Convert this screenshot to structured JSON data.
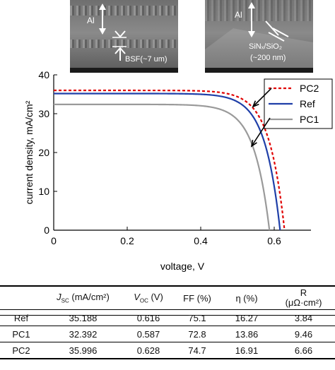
{
  "insets": {
    "left": {
      "al_label": "Al",
      "bsf_label": "BSF(~7 um)"
    },
    "right": {
      "al_label": "Al",
      "layer_line1": "SiNₓ/SiO₂",
      "layer_line2": "(~200 nm)"
    }
  },
  "chart_data": {
    "type": "line",
    "xlabel": "voltage, V",
    "ylabel": "current density, mA/cm²",
    "xlim": [
      0,
      0.7
    ],
    "ylim": [
      0,
      40
    ],
    "xticks": [
      0,
      0.2,
      0.4,
      0.6
    ],
    "yticks": [
      0,
      10,
      20,
      30,
      40
    ],
    "legend_position": "top-right",
    "series": [
      {
        "name": "PC2",
        "color": "#e00000",
        "dash": true,
        "jsc": 35.996,
        "voc": 0.628,
        "n": 1.6
      },
      {
        "name": "Ref",
        "color": "#1f3fa8",
        "dash": false,
        "jsc": 35.188,
        "voc": 0.616,
        "n": 1.6
      },
      {
        "name": "PC1",
        "color": "#9a9a9a",
        "dash": false,
        "jsc": 32.392,
        "voc": 0.587,
        "n": 1.6
      }
    ]
  },
  "table": {
    "headers": [
      {
        "main": "J",
        "sub": "SC",
        "rest": " (mA/cm²)"
      },
      {
        "main": "V",
        "sub": "OC",
        "rest": " (V)"
      },
      {
        "main": "FF (%)",
        "sub": "",
        "rest": ""
      },
      {
        "main": "η (%)",
        "sub": "",
        "rest": ""
      },
      {
        "main": "R",
        "sub": "",
        "rest": "(μΩ·cm²)"
      }
    ],
    "rows": [
      {
        "label": "Ref",
        "jsc": "35.188",
        "voc": "0.616",
        "ff": "75.1",
        "eta": "16.27",
        "r": "3.84"
      },
      {
        "label": "PC1",
        "jsc": "32.392",
        "voc": "0.587",
        "ff": "72.8",
        "eta": "13.86",
        "r": "9.46"
      },
      {
        "label": "PC2",
        "jsc": "35.996",
        "voc": "0.628",
        "ff": "74.7",
        "eta": "16.91",
        "r": "6.66"
      }
    ]
  }
}
